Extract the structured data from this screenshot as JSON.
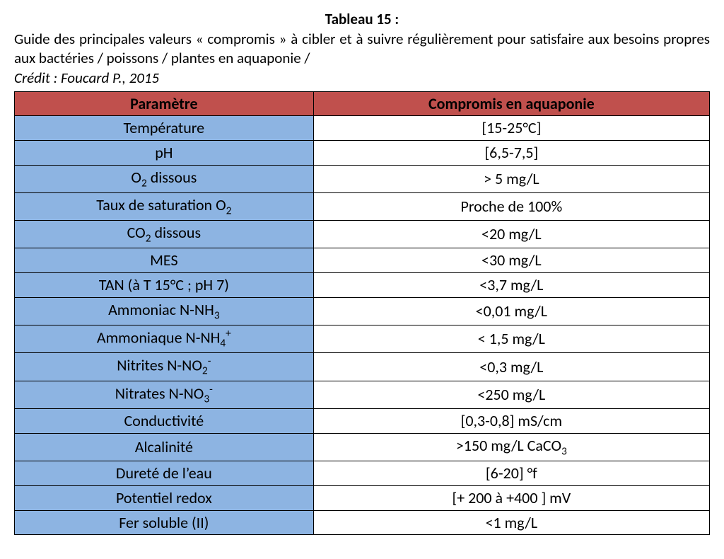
{
  "title": "Tableau 15 :",
  "caption": "Guide des principales valeurs « compromis » à cibler et à suivre régulièrement pour satisfaire aux besoins propres aux bactéries / poissons / plantes en aquaponie /",
  "credit": "Crédit : Foucard P., 2015",
  "table": {
    "header_bg": "#c0504d",
    "param_cell_bg": "#8db4e2",
    "value_cell_bg": "#ffffff",
    "border_color": "#000000",
    "columns": [
      {
        "label": "Paramètre"
      },
      {
        "label": "Compromis en aquaponie"
      }
    ],
    "rows": [
      {
        "param_html": "Température",
        "value_html": "[15-25°C]"
      },
      {
        "param_html": "pH",
        "value_html": "[6,5-7,5]"
      },
      {
        "param_html": "O<span class=\"sub\">2</span> dissous",
        "value_html": "> 5 mg/L"
      },
      {
        "param_html": "Taux de saturation O<span class=\"sub\">2</span>",
        "value_html": "Proche de 100%"
      },
      {
        "param_html": "CO<span class=\"sub\">2</span> dissous",
        "value_html": "<20 mg/L"
      },
      {
        "param_html": "MES",
        "value_html": "<30 mg/L"
      },
      {
        "param_html": "TAN (à T 15°C ; pH 7)",
        "value_html": "<3,7 mg/L"
      },
      {
        "param_html": "Ammoniac N-NH<span class=\"sub\">3</span>",
        "value_html": "<0,01 mg/L"
      },
      {
        "param_html": "Ammoniaque N-NH<span class=\"sub\">4</span><span class=\"sup\">+</span>",
        "value_html": "< 1,5 mg/L"
      },
      {
        "param_html": "Nitrites N-NO<span class=\"sub\">2</span><span class=\"sup\">-</span>",
        "value_html": "<0,3 mg/L"
      },
      {
        "param_html": "Nitrates N-NO<span class=\"sub\">3</span><span class=\"sup\">-</span>",
        "value_html": "<250 mg/L"
      },
      {
        "param_html": "Conductivité",
        "value_html": "[0,3-0,8] mS/cm"
      },
      {
        "param_html": "Alcalinité",
        "value_html": ">150 mg/L CaCO<span class=\"sub\">3</span>"
      },
      {
        "param_html": "Dureté de l’eau",
        "value_html": "[6-20] °f"
      },
      {
        "param_html": "Potentiel redox",
        "value_html": "[+ 200 à +400 ] mV"
      },
      {
        "param_html": "Fer soluble (II)",
        "value_html": "<1 mg/L"
      }
    ]
  }
}
